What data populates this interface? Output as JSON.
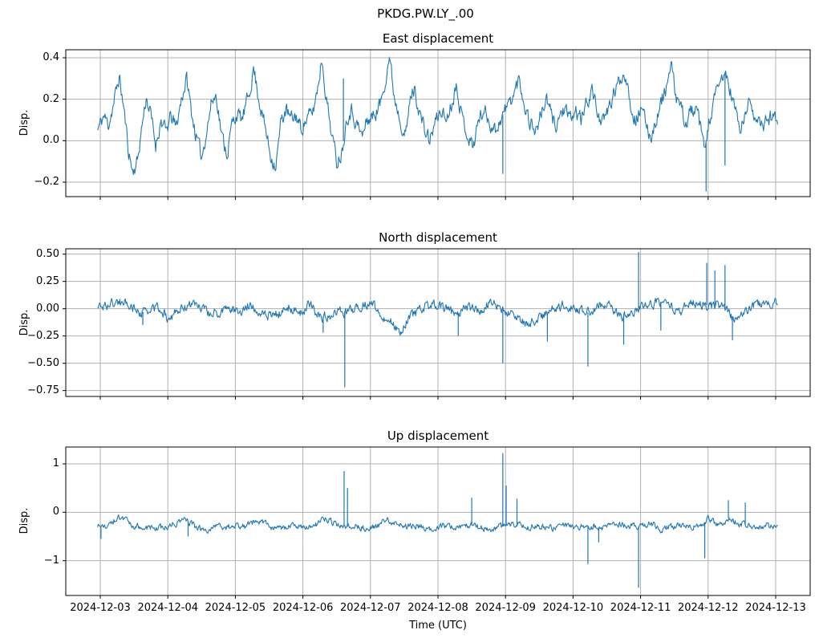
{
  "figure": {
    "suptitle": "PKDG.PW.LY_.00",
    "xlabel": "Time (UTC)",
    "line_color": "#1f77b4",
    "grid_color": "#b0b0b0",
    "spine_color": "#000000",
    "background_color": "#ffffff",
    "text_color": "#000000"
  },
  "x_axis": {
    "label": "Time (UTC)",
    "tick_labels": [
      "2024-12-03",
      "2024-12-04",
      "2024-12-05",
      "2024-12-06",
      "2024-12-07",
      "2024-12-08",
      "2024-12-09",
      "2024-12-10",
      "2024-12-11",
      "2024-12-12",
      "2024-12-13"
    ],
    "tick_values": [
      0,
      1,
      2,
      3,
      4,
      5,
      6,
      7,
      8,
      9,
      10
    ],
    "lim": [
      -0.511,
      10.511
    ],
    "grid": true
  },
  "chart_data": [
    {
      "type": "line",
      "id": "east",
      "title": "East displacement",
      "ylabel": "Disp.",
      "color": "#1f77b4",
      "ylim": [
        -0.2697,
        0.4387
      ],
      "y_ticks": {
        "values": [
          0.4,
          0.2,
          0.0,
          -0.2
        ],
        "labels": [
          "0.4",
          "0.2",
          "0.0",
          "−0.2"
        ]
      },
      "noise_amp": 0.032,
      "anchors": [
        [
          -0.04,
          0.05
        ],
        [
          0.05,
          0.12
        ],
        [
          0.12,
          0.08
        ],
        [
          0.2,
          0.18
        ],
        [
          0.28,
          0.31
        ],
        [
          0.35,
          0.15
        ],
        [
          0.42,
          -0.05
        ],
        [
          0.48,
          -0.15
        ],
        [
          0.55,
          -0.1
        ],
        [
          0.62,
          0.08
        ],
        [
          0.68,
          0.21
        ],
        [
          0.75,
          0.12
        ],
        [
          0.82,
          -0.02
        ],
        [
          0.9,
          0.1
        ],
        [
          0.97,
          0.04
        ],
        [
          1.05,
          0.12
        ],
        [
          1.12,
          0.06
        ],
        [
          1.2,
          0.2
        ],
        [
          1.28,
          0.3
        ],
        [
          1.35,
          0.14
        ],
        [
          1.42,
          0.02
        ],
        [
          1.5,
          -0.08
        ],
        [
          1.58,
          0.06
        ],
        [
          1.65,
          0.19
        ],
        [
          1.72,
          0.22
        ],
        [
          1.8,
          0.02
        ],
        [
          1.88,
          -0.06
        ],
        [
          1.95,
          0.08
        ],
        [
          2.02,
          0.13
        ],
        [
          2.1,
          0.1
        ],
        [
          2.2,
          0.22
        ],
        [
          2.27,
          0.35
        ],
        [
          2.35,
          0.2
        ],
        [
          2.45,
          0.05
        ],
        [
          2.52,
          -0.07
        ],
        [
          2.6,
          -0.12
        ],
        [
          2.68,
          0.1
        ],
        [
          2.75,
          0.15
        ],
        [
          2.82,
          0.1
        ],
        [
          2.9,
          0.12
        ],
        [
          2.97,
          0.06
        ],
        [
          3.05,
          0.1
        ],
        [
          3.15,
          0.14
        ],
        [
          3.22,
          0.26
        ],
        [
          3.28,
          0.4
        ],
        [
          3.35,
          0.2
        ],
        [
          3.42,
          0.05
        ],
        [
          3.5,
          -0.1
        ],
        [
          3.58,
          -0.05
        ],
        [
          3.65,
          0.12
        ],
        [
          3.72,
          0.15
        ],
        [
          3.8,
          0.08
        ],
        [
          3.88,
          0.02
        ],
        [
          3.95,
          0.1
        ],
        [
          4.05,
          0.12
        ],
        [
          4.15,
          0.18
        ],
        [
          4.22,
          0.3
        ],
        [
          4.28,
          0.41
        ],
        [
          4.35,
          0.22
        ],
        [
          4.45,
          0.1
        ],
        [
          4.52,
          0.02
        ],
        [
          4.6,
          0.22
        ],
        [
          4.65,
          0.25
        ],
        [
          4.72,
          0.15
        ],
        [
          4.8,
          0.05
        ],
        [
          4.88,
          0.0
        ],
        [
          4.95,
          0.08
        ],
        [
          5.05,
          0.15
        ],
        [
          5.12,
          0.1
        ],
        [
          5.2,
          0.18
        ],
        [
          5.28,
          0.28
        ],
        [
          5.35,
          0.12
        ],
        [
          5.45,
          0.02
        ],
        [
          5.52,
          -0.03
        ],
        [
          5.6,
          0.1
        ],
        [
          5.68,
          0.15
        ],
        [
          5.75,
          0.1
        ],
        [
          5.85,
          0.05
        ],
        [
          5.95,
          0.12
        ],
        [
          6.05,
          0.18
        ],
        [
          6.12,
          0.22
        ],
        [
          6.2,
          0.3
        ],
        [
          6.28,
          0.18
        ],
        [
          6.35,
          0.1
        ],
        [
          6.45,
          0.05
        ],
        [
          6.52,
          0.12
        ],
        [
          6.6,
          0.2
        ],
        [
          6.68,
          0.12
        ],
        [
          6.75,
          0.08
        ],
        [
          6.85,
          0.15
        ],
        [
          6.95,
          0.1
        ],
        [
          7.05,
          0.14
        ],
        [
          7.12,
          0.1
        ],
        [
          7.2,
          0.18
        ],
        [
          7.28,
          0.25
        ],
        [
          7.35,
          0.15
        ],
        [
          7.45,
          0.08
        ],
        [
          7.52,
          0.15
        ],
        [
          7.6,
          0.22
        ],
        [
          7.7,
          0.3
        ],
        [
          7.78,
          0.33
        ],
        [
          7.85,
          0.18
        ],
        [
          7.92,
          0.1
        ],
        [
          8.0,
          0.15
        ],
        [
          8.08,
          0.08
        ],
        [
          8.15,
          0.02
        ],
        [
          8.25,
          0.12
        ],
        [
          8.32,
          0.2
        ],
        [
          8.4,
          0.28
        ],
        [
          8.45,
          0.36
        ],
        [
          8.52,
          0.22
        ],
        [
          8.6,
          0.15
        ],
        [
          8.68,
          0.08
        ],
        [
          8.75,
          0.15
        ],
        [
          8.85,
          0.12
        ],
        [
          8.95,
          -0.05
        ],
        [
          9.02,
          0.1
        ],
        [
          9.1,
          0.2
        ],
        [
          9.18,
          0.28
        ],
        [
          9.25,
          0.33
        ],
        [
          9.32,
          0.25
        ],
        [
          9.4,
          0.15
        ],
        [
          9.48,
          0.05
        ],
        [
          9.55,
          0.12
        ],
        [
          9.62,
          0.2
        ],
        [
          9.7,
          0.12
        ],
        [
          9.78,
          0.05
        ],
        [
          9.85,
          0.1
        ],
        [
          9.95,
          0.12
        ],
        [
          10.03,
          0.1
        ]
      ],
      "spikes": [
        [
          3.6,
          0.3
        ],
        [
          5.96,
          -0.16
        ],
        [
          8.97,
          -0.245
        ],
        [
          9.25,
          -0.12
        ]
      ]
    },
    {
      "type": "line",
      "id": "north",
      "title": "North displacement",
      "ylabel": "Disp.",
      "color": "#1f77b4",
      "ylim": [
        -0.804,
        0.549
      ],
      "y_ticks": {
        "values": [
          0.5,
          0.25,
          0.0,
          -0.25,
          -0.5,
          -0.75
        ],
        "labels": [
          "0.50",
          "0.25",
          "0.00",
          "−0.25",
          "−0.50",
          "−0.75"
        ]
      },
      "noise_amp": 0.038,
      "anchors": [
        [
          -0.04,
          0.02
        ],
        [
          0.1,
          0.03
        ],
        [
          0.25,
          0.06
        ],
        [
          0.4,
          0.05
        ],
        [
          0.55,
          -0.02
        ],
        [
          0.7,
          -0.04
        ],
        [
          0.85,
          0.02
        ],
        [
          1.0,
          -0.08
        ],
        [
          1.15,
          -0.03
        ],
        [
          1.3,
          0.04
        ],
        [
          1.45,
          0.03
        ],
        [
          1.6,
          -0.04
        ],
        [
          1.75,
          -0.05
        ],
        [
          1.9,
          0.02
        ],
        [
          2.05,
          -0.03
        ],
        [
          2.2,
          0.04
        ],
        [
          2.35,
          -0.02
        ],
        [
          2.5,
          -0.06
        ],
        [
          2.65,
          -0.05
        ],
        [
          2.8,
          0.02
        ],
        [
          2.95,
          -0.05
        ],
        [
          3.1,
          0.05
        ],
        [
          3.25,
          -0.08
        ],
        [
          3.4,
          -0.06
        ],
        [
          3.55,
          -0.04
        ],
        [
          3.7,
          -0.02
        ],
        [
          3.85,
          0.03
        ],
        [
          4.0,
          0.05
        ],
        [
          4.15,
          -0.05
        ],
        [
          4.3,
          -0.12
        ],
        [
          4.45,
          -0.2
        ],
        [
          4.55,
          -0.1
        ],
        [
          4.7,
          -0.03
        ],
        [
          4.85,
          0.02
        ],
        [
          5.0,
          0.04
        ],
        [
          5.15,
          -0.02
        ],
        [
          5.3,
          -0.05
        ],
        [
          5.45,
          0.02
        ],
        [
          5.6,
          -0.03
        ],
        [
          5.75,
          0.05
        ],
        [
          5.9,
          0.02
        ],
        [
          6.05,
          -0.04
        ],
        [
          6.2,
          -0.1
        ],
        [
          6.35,
          -0.14
        ],
        [
          6.5,
          -0.08
        ],
        [
          6.65,
          -0.03
        ],
        [
          6.8,
          0.03
        ],
        [
          6.95,
          0.02
        ],
        [
          7.1,
          -0.02
        ],
        [
          7.25,
          -0.04
        ],
        [
          7.4,
          0.04
        ],
        [
          7.55,
          0.03
        ],
        [
          7.7,
          -0.08
        ],
        [
          7.85,
          -0.05
        ],
        [
          8.0,
          0.02
        ],
        [
          8.15,
          0.04
        ],
        [
          8.3,
          0.06
        ],
        [
          8.45,
          0.02
        ],
        [
          8.6,
          -0.02
        ],
        [
          8.75,
          0.04
        ],
        [
          8.9,
          0.05
        ],
        [
          9.05,
          0.02
        ],
        [
          9.2,
          0.04
        ],
        [
          9.35,
          -0.08
        ],
        [
          9.5,
          -0.05
        ],
        [
          9.65,
          0.03
        ],
        [
          9.8,
          0.05
        ],
        [
          9.95,
          0.04
        ],
        [
          10.03,
          0.06
        ]
      ],
      "spikes": [
        [
          0.63,
          -0.15
        ],
        [
          3.3,
          -0.22
        ],
        [
          3.62,
          -0.72
        ],
        [
          5.3,
          -0.25
        ],
        [
          5.96,
          -0.5
        ],
        [
          6.62,
          -0.3
        ],
        [
          7.22,
          -0.53
        ],
        [
          7.75,
          -0.33
        ],
        [
          7.97,
          0.52
        ],
        [
          8.3,
          -0.2
        ],
        [
          8.98,
          0.42
        ],
        [
          9.1,
          0.35
        ],
        [
          9.25,
          0.4
        ],
        [
          9.36,
          -0.29
        ]
      ]
    },
    {
      "type": "line",
      "id": "up",
      "title": "Up displacement",
      "ylabel": "Disp.",
      "color": "#1f77b4",
      "ylim": [
        -1.718,
        1.348
      ],
      "y_ticks": {
        "values": [
          1,
          0,
          -1
        ],
        "labels": [
          "1",
          "0",
          "−1"
        ]
      },
      "noise_amp": 0.055,
      "anchors": [
        [
          -0.04,
          -0.28
        ],
        [
          0.1,
          -0.32
        ],
        [
          0.25,
          -0.1
        ],
        [
          0.35,
          -0.15
        ],
        [
          0.5,
          -0.3
        ],
        [
          0.65,
          -0.28
        ],
        [
          0.8,
          -0.35
        ],
        [
          0.95,
          -0.3
        ],
        [
          1.1,
          -0.25
        ],
        [
          1.25,
          -0.12
        ],
        [
          1.4,
          -0.3
        ],
        [
          1.55,
          -0.38
        ],
        [
          1.7,
          -0.3
        ],
        [
          1.85,
          -0.32
        ],
        [
          2.0,
          -0.28
        ],
        [
          2.15,
          -0.3
        ],
        [
          2.3,
          -0.18
        ],
        [
          2.45,
          -0.25
        ],
        [
          2.6,
          -0.35
        ],
        [
          2.75,
          -0.3
        ],
        [
          2.9,
          -0.28
        ],
        [
          3.05,
          -0.32
        ],
        [
          3.2,
          -0.25
        ],
        [
          3.35,
          -0.12
        ],
        [
          3.5,
          -0.25
        ],
        [
          3.65,
          -0.3
        ],
        [
          3.8,
          -0.28
        ],
        [
          3.95,
          -0.35
        ],
        [
          4.1,
          -0.3
        ],
        [
          4.25,
          -0.15
        ],
        [
          4.4,
          -0.25
        ],
        [
          4.55,
          -0.3
        ],
        [
          4.7,
          -0.28
        ],
        [
          4.85,
          -0.35
        ],
        [
          5.0,
          -0.3
        ],
        [
          5.15,
          -0.28
        ],
        [
          5.3,
          -0.32
        ],
        [
          5.45,
          -0.25
        ],
        [
          5.6,
          -0.3
        ],
        [
          5.75,
          -0.35
        ],
        [
          5.9,
          -0.3
        ],
        [
          6.05,
          -0.28
        ],
        [
          6.2,
          -0.25
        ],
        [
          6.35,
          -0.3
        ],
        [
          6.5,
          -0.28
        ],
        [
          6.65,
          -0.35
        ],
        [
          6.8,
          -0.3
        ],
        [
          6.95,
          -0.25
        ],
        [
          7.1,
          -0.3
        ],
        [
          7.25,
          -0.28
        ],
        [
          7.4,
          -0.32
        ],
        [
          7.55,
          -0.3
        ],
        [
          7.7,
          -0.25
        ],
        [
          7.85,
          -0.28
        ],
        [
          8.0,
          -0.3
        ],
        [
          8.15,
          -0.22
        ],
        [
          8.3,
          -0.35
        ],
        [
          8.45,
          -0.3
        ],
        [
          8.6,
          -0.28
        ],
        [
          8.75,
          -0.32
        ],
        [
          8.9,
          -0.25
        ],
        [
          9.0,
          -0.15
        ],
        [
          9.1,
          -0.22
        ],
        [
          9.2,
          -0.28
        ],
        [
          9.3,
          -0.12
        ],
        [
          9.4,
          -0.2
        ],
        [
          9.55,
          -0.25
        ],
        [
          9.7,
          -0.32
        ],
        [
          9.85,
          -0.28
        ],
        [
          10.03,
          -0.27
        ]
      ],
      "spikes": [
        [
          0.01,
          -0.55
        ],
        [
          1.3,
          -0.5
        ],
        [
          3.61,
          0.85
        ],
        [
          3.66,
          0.5
        ],
        [
          5.5,
          0.3
        ],
        [
          5.96,
          1.22
        ],
        [
          6.01,
          0.55
        ],
        [
          6.17,
          0.28
        ],
        [
          7.22,
          -1.07
        ],
        [
          7.38,
          -0.62
        ],
        [
          7.97,
          -1.56
        ],
        [
          8.95,
          -0.95
        ],
        [
          9.3,
          0.25
        ],
        [
          9.55,
          0.2
        ]
      ]
    }
  ]
}
